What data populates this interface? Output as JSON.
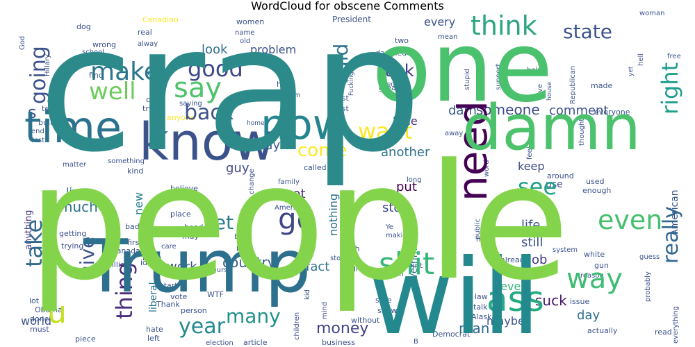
{
  "chart_data": {
    "type": "wordcloud",
    "title": "WordCloud for obscene Comments",
    "colormap": "viridis",
    "background": "#ffffff",
    "words": [
      {
        "text": "crap",
        "weight": 250,
        "color": "#2c8a8a"
      },
      {
        "text": "people",
        "weight": 230,
        "color": "#84d44b"
      },
      {
        "text": "one",
        "weight": 140,
        "color": "#4ac16d"
      },
      {
        "text": "will",
        "weight": 150,
        "color": "#23898e"
      },
      {
        "text": "Trump",
        "weight": 105,
        "color": "#2d708e"
      },
      {
        "text": "damn",
        "weight": 90,
        "color": "#4cc26c"
      },
      {
        "text": "know",
        "weight": 74,
        "color": "#3b528b"
      },
      {
        "text": "time",
        "weight": 62,
        "color": "#2c728e"
      },
      {
        "text": "now",
        "weight": 60,
        "color": "#25858e"
      },
      {
        "text": "need",
        "weight": 58,
        "color": "#440154"
      },
      {
        "text": "ass",
        "weight": 50,
        "color": "#25ab82"
      },
      {
        "text": "shit",
        "weight": 44,
        "color": "#35b779"
      },
      {
        "text": "go",
        "weight": 42,
        "color": "#3f4788"
      },
      {
        "text": "u",
        "weight": 44,
        "color": "#c5e021"
      },
      {
        "text": "way",
        "weight": 40,
        "color": "#3fbc73"
      },
      {
        "text": "even",
        "weight": 38,
        "color": "#46c06f"
      },
      {
        "text": "say",
        "weight": 40,
        "color": "#4ec36b"
      },
      {
        "text": "think",
        "weight": 38,
        "color": "#2ca580"
      },
      {
        "text": "make",
        "weight": 36,
        "color": "#2b748e"
      },
      {
        "text": "well",
        "weight": 34,
        "color": "#6ccd5a"
      },
      {
        "text": "want",
        "weight": 32,
        "color": "#fde725"
      },
      {
        "text": "thing",
        "weight": 32,
        "color": "#472d7b"
      },
      {
        "text": "right",
        "weight": 32,
        "color": "#1f9e89"
      },
      {
        "text": "back",
        "weight": 30,
        "color": "#3b528b"
      },
      {
        "text": "see",
        "weight": 32,
        "color": "#1fa088"
      },
      {
        "text": "good",
        "weight": 32,
        "color": "#3e4989"
      },
      {
        "text": "going",
        "weight": 30,
        "color": "#3b528b"
      },
      {
        "text": "take",
        "weight": 32,
        "color": "#31688e"
      },
      {
        "text": "really",
        "weight": 30,
        "color": "#31688e"
      },
      {
        "text": "year",
        "weight": 30,
        "color": "#23898e"
      },
      {
        "text": "many",
        "weight": 28,
        "color": "#20928c"
      },
      {
        "text": "give",
        "weight": 28,
        "color": "#3b528b"
      },
      {
        "text": "state",
        "weight": 28,
        "color": "#3b528b"
      },
      {
        "text": "let",
        "weight": 28,
        "color": "#287c8e"
      },
      {
        "text": "said",
        "weight": 28,
        "color": "#2c728e"
      },
      {
        "text": "come",
        "weight": 26,
        "color": "#fde725"
      },
      {
        "text": "fuck",
        "weight": 24,
        "color": "#443983"
      },
      {
        "text": "money",
        "weight": 22,
        "color": "#414487"
      },
      {
        "text": "someone",
        "weight": 20,
        "color": "#3e4989"
      },
      {
        "text": "s",
        "weight": 24,
        "color": "#3b528b"
      },
      {
        "text": "country",
        "weight": 20,
        "color": "#38598c"
      },
      {
        "text": "suck",
        "weight": 20,
        "color": "#481769"
      },
      {
        "text": "comment",
        "weight": 18,
        "color": "#3b528b"
      },
      {
        "text": "man",
        "weight": 20,
        "color": "#31688e"
      },
      {
        "text": "much",
        "weight": 20,
        "color": "#2c728e"
      },
      {
        "text": "work",
        "weight": 18,
        "color": "#3b528b"
      },
      {
        "text": "look",
        "weight": 18,
        "color": "#2d708e"
      },
      {
        "text": "problem",
        "weight": 16,
        "color": "#3b528b"
      },
      {
        "text": "pay",
        "weight": 18,
        "color": "#38598c"
      },
      {
        "text": "guy",
        "weight": 18,
        "color": "#3e4989"
      },
      {
        "text": "another",
        "weight": 18,
        "color": "#2d708e"
      },
      {
        "text": "darn",
        "weight": 18,
        "color": "#38598c"
      },
      {
        "text": "little",
        "weight": 16,
        "color": "#472d7b"
      },
      {
        "text": "put",
        "weight": 18,
        "color": "#440154"
      },
      {
        "text": "got",
        "weight": 18,
        "color": "#472d7b"
      },
      {
        "text": "stop",
        "weight": 18,
        "color": "#3e4989"
      },
      {
        "text": "life",
        "weight": 18,
        "color": "#3b528b"
      },
      {
        "text": "still",
        "weight": 18,
        "color": "#3b528b"
      },
      {
        "text": "job",
        "weight": 18,
        "color": "#443983"
      },
      {
        "text": "keep",
        "weight": 16,
        "color": "#3e4989"
      },
      {
        "text": "never",
        "weight": 16,
        "color": "#35b779"
      },
      {
        "text": "day",
        "weight": 18,
        "color": "#2d708e"
      },
      {
        "text": "maybe",
        "weight": 16,
        "color": "#3b528b"
      },
      {
        "text": "better",
        "weight": 14,
        "color": "#287c8e"
      },
      {
        "text": "fact",
        "weight": 18,
        "color": "#2c728e"
      },
      {
        "text": "live",
        "weight": 16,
        "color": "#2d708e"
      },
      {
        "text": "new",
        "weight": 16,
        "color": "#26828e"
      },
      {
        "text": "world",
        "weight": 16,
        "color": "#3b528b"
      },
      {
        "text": "nothing",
        "weight": 16,
        "color": "#2c728e"
      },
      {
        "text": "government",
        "weight": 14,
        "color": "#2d708e"
      },
      {
        "text": "liberal",
        "weight": 14,
        "color": "#2c728e"
      },
      {
        "text": "use",
        "weight": 14,
        "color": "#3b528b"
      },
      {
        "text": "American",
        "weight": 14,
        "color": "#3b528b"
      },
      {
        "text": "anything",
        "weight": 13,
        "color": "#46337f"
      },
      {
        "text": "every",
        "weight": 16,
        "color": "#3b528b"
      },
      {
        "text": "President",
        "weight": 12,
        "color": "#3b528b"
      },
      {
        "text": "women",
        "weight": 11,
        "color": "#3b528b"
      },
      {
        "text": "Canadian",
        "weight": 11,
        "color": "#fde725"
      },
      {
        "text": "dog",
        "weight": 11,
        "color": "#3b528b"
      },
      {
        "text": "real",
        "weight": 11,
        "color": "#3b528b"
      },
      {
        "text": "alway",
        "weight": 10,
        "color": "#3b528b"
      },
      {
        "text": "wrong",
        "weight": 11,
        "color": "#3b528b"
      },
      {
        "text": "school",
        "weight": 10,
        "color": "#3b528b"
      },
      {
        "text": "name",
        "weight": 10,
        "color": "#3b528b"
      },
      {
        "text": "old",
        "weight": 10,
        "color": "#3b528b"
      },
      {
        "text": "God",
        "weight": 10,
        "color": "#3b528b"
      },
      {
        "text": "Hillary",
        "weight": 10,
        "color": "#3b528b"
      },
      {
        "text": "two",
        "weight": 11,
        "color": "#3b528b"
      },
      {
        "text": "damned",
        "weight": 11,
        "color": "#3b528b"
      },
      {
        "text": "screwed",
        "weight": 10,
        "color": "#3b528b"
      },
      {
        "text": "mean",
        "weight": 10,
        "color": "#3b528b"
      },
      {
        "text": "woman",
        "weight": 10,
        "color": "#3b528b"
      },
      {
        "text": "free",
        "weight": 10,
        "color": "#3b528b"
      },
      {
        "text": "hell",
        "weight": 10,
        "color": "#3b528b"
      },
      {
        "text": "Republican",
        "weight": 10,
        "color": "#3b528b"
      },
      {
        "text": "find",
        "weight": 11,
        "color": "#3b528b"
      },
      {
        "text": "run",
        "weight": 10,
        "color": "#3b528b"
      },
      {
        "text": "hope",
        "weight": 11,
        "color": "#3b528b"
      },
      {
        "text": "seem",
        "weight": 10,
        "color": "#3b528b"
      },
      {
        "text": "Fucking",
        "weight": 9,
        "color": "#3b528b"
      },
      {
        "text": "men",
        "weight": 9,
        "color": "#3b528b"
      },
      {
        "text": "great",
        "weight": 11,
        "color": "#3b528b"
      },
      {
        "text": "stupid",
        "weight": 10,
        "color": "#3b528b"
      },
      {
        "text": "support",
        "weight": 10,
        "color": "#3b528b"
      },
      {
        "text": "help",
        "weight": 10,
        "color": "#3b528b"
      },
      {
        "text": "love",
        "weight": 10,
        "color": "#3b528b"
      },
      {
        "text": "house",
        "weight": 9,
        "color": "#3b528b"
      },
      {
        "text": "yet",
        "weight": 9,
        "color": "#3b528b"
      },
      {
        "text": "made",
        "weight": 11,
        "color": "#3b528b"
      },
      {
        "text": "call",
        "weight": 11,
        "color": "#3b528b"
      },
      {
        "text": "try",
        "weight": 11,
        "color": "#3b528b"
      },
      {
        "text": "saying",
        "weight": 10,
        "color": "#3b528b"
      },
      {
        "text": "lie",
        "weight": 9,
        "color": "#3b528b"
      },
      {
        "text": "best",
        "weight": 11,
        "color": "#3b528b"
      },
      {
        "text": "post",
        "weight": 11,
        "color": "#3b528b"
      },
      {
        "text": "tell",
        "weight": 11,
        "color": "#3b528b"
      },
      {
        "text": "bullshit",
        "weight": 11,
        "color": "#3b528b"
      },
      {
        "text": "end",
        "weight": 10,
        "color": "#3b528b"
      },
      {
        "text": "rest",
        "weight": 10,
        "color": "#3b528b"
      },
      {
        "text": "anyone",
        "weight": 11,
        "color": "#fde725"
      },
      {
        "text": "home",
        "weight": 9,
        "color": "#3b528b"
      },
      {
        "text": "away",
        "weight": 10,
        "color": "#3b528b"
      },
      {
        "text": "thought",
        "weight": 10,
        "color": "#3b528b"
      },
      {
        "text": "everyone",
        "weight": 11,
        "color": "#3b528b"
      },
      {
        "text": "matter",
        "weight": 10,
        "color": "#3b528b"
      },
      {
        "text": "something",
        "weight": 10,
        "color": "#3b528b"
      },
      {
        "text": "kind",
        "weight": 11,
        "color": "#3b528b"
      },
      {
        "text": "called",
        "weight": 11,
        "color": "#3b528b"
      },
      {
        "text": "word",
        "weight": 10,
        "color": "#3b528b"
      },
      {
        "text": "feel",
        "weight": 10,
        "color": "#3b528b"
      },
      {
        "text": "around",
        "weight": 11,
        "color": "#3b528b"
      },
      {
        "text": "used",
        "weight": 11,
        "color": "#3b528b"
      },
      {
        "text": "enough",
        "weight": 11,
        "color": "#3b528b"
      },
      {
        "text": "family",
        "weight": 10,
        "color": "#3b528b"
      },
      {
        "text": "believe",
        "weight": 11,
        "color": "#3b528b"
      },
      {
        "text": "change",
        "weight": 10,
        "color": "#3b528b"
      },
      {
        "text": "America",
        "weight": 10,
        "color": "#3b528b"
      },
      {
        "text": "long",
        "weight": 10,
        "color": "#3b528b"
      },
      {
        "text": "place",
        "weight": 11,
        "color": "#3b528b"
      },
      {
        "text": "getting",
        "weight": 11,
        "color": "#3b528b"
      },
      {
        "text": "trying",
        "weight": 11,
        "color": "#3b528b"
      },
      {
        "text": "head",
        "weight": 11,
        "color": "#3b528b"
      },
      {
        "text": "bad",
        "weight": 11,
        "color": "#3b528b"
      },
      {
        "text": "may",
        "weight": 11,
        "color": "#3b528b"
      },
      {
        "text": "first",
        "weight": 11,
        "color": "#3b528b"
      },
      {
        "text": "Canada",
        "weight": 11,
        "color": "#3b528b"
      },
      {
        "text": "big",
        "weight": 10,
        "color": "#3b528b"
      },
      {
        "text": "part",
        "weight": 10,
        "color": "#3b528b"
      },
      {
        "text": "Ye",
        "weight": 10,
        "color": "#3b528b"
      },
      {
        "text": "making",
        "weight": 10,
        "color": "#3b528b"
      },
      {
        "text": "public",
        "weight": 10,
        "color": "#3b528b"
      },
      {
        "text": "hand",
        "weight": 10,
        "color": "#3b528b"
      },
      {
        "text": "care",
        "weight": 10,
        "color": "#3b528b"
      },
      {
        "text": "bitch",
        "weight": 11,
        "color": "#3b528b"
      },
      {
        "text": "million",
        "weight": 11,
        "color": "#3b528b"
      },
      {
        "text": "idiot",
        "weight": 11,
        "color": "#3b528b"
      },
      {
        "text": "course",
        "weight": 10,
        "color": "#3b528b"
      },
      {
        "text": "Oh",
        "weight": 11,
        "color": "#3b528b"
      },
      {
        "text": "story",
        "weight": 10,
        "color": "#3b528b"
      },
      {
        "text": "bill",
        "weight": 10,
        "color": "#3b528b"
      },
      {
        "text": "point",
        "weight": 11,
        "color": "#3b528b"
      },
      {
        "text": "happen",
        "weight": 10,
        "color": "#3b528b"
      },
      {
        "text": "already",
        "weight": 11,
        "color": "#3b528b"
      },
      {
        "text": "system",
        "weight": 10,
        "color": "#3b528b"
      },
      {
        "text": "white",
        "weight": 11,
        "color": "#3b528b"
      },
      {
        "text": "guess",
        "weight": 10,
        "color": "#3b528b"
      },
      {
        "text": "gun",
        "weight": 11,
        "color": "#3b528b"
      },
      {
        "text": "reason",
        "weight": 10,
        "color": "#3b528b"
      },
      {
        "text": "probably",
        "weight": 10,
        "color": "#3b528b"
      },
      {
        "text": "issue",
        "weight": 11,
        "color": "#3b528b"
      },
      {
        "text": "start",
        "weight": 11,
        "color": "#3b528b"
      },
      {
        "text": "vote",
        "weight": 11,
        "color": "#3b528b"
      },
      {
        "text": "Thank",
        "weight": 11,
        "color": "#3b528b"
      },
      {
        "text": "person",
        "weight": 11,
        "color": "#3b528b"
      },
      {
        "text": "WTF",
        "weight": 11,
        "color": "#3b528b"
      },
      {
        "text": "lot",
        "weight": 11,
        "color": "#3b528b"
      },
      {
        "text": "Obama",
        "weight": 11,
        "color": "#3b528b"
      },
      {
        "text": "done",
        "weight": 11,
        "color": "#3b528b"
      },
      {
        "text": "must",
        "weight": 11,
        "color": "#3b528b"
      },
      {
        "text": "hate",
        "weight": 11,
        "color": "#3b528b"
      },
      {
        "text": "left",
        "weight": 11,
        "color": "#3b528b"
      },
      {
        "text": "piece",
        "weight": 11,
        "color": "#3b528b"
      },
      {
        "text": "election",
        "weight": 10,
        "color": "#3b528b"
      },
      {
        "text": "article",
        "weight": 11,
        "color": "#3b528b"
      },
      {
        "text": "children",
        "weight": 10,
        "color": "#3b528b"
      },
      {
        "text": "kid",
        "weight": 10,
        "color": "#3b528b"
      },
      {
        "text": "mind",
        "weight": 10,
        "color": "#3b528b"
      },
      {
        "text": "sure",
        "weight": 11,
        "color": "#3b528b"
      },
      {
        "text": "show",
        "weight": 11,
        "color": "#3b528b"
      },
      {
        "text": "without",
        "weight": 11,
        "color": "#3b528b"
      },
      {
        "text": "business",
        "weight": 11,
        "color": "#3b528b"
      },
      {
        "text": "B",
        "weight": 10,
        "color": "#3b528b"
      },
      {
        "text": "law",
        "weight": 11,
        "color": "#3b528b"
      },
      {
        "text": "talk",
        "weight": 11,
        "color": "#3b528b"
      },
      {
        "text": "Alaska",
        "weight": 11,
        "color": "#3b528b"
      },
      {
        "text": "Democrat",
        "weight": 11,
        "color": "#3b528b"
      },
      {
        "text": "actually",
        "weight": 11,
        "color": "#3b528b"
      },
      {
        "text": "read",
        "weight": 11,
        "color": "#3b528b"
      },
      {
        "text": "everything",
        "weight": 10,
        "color": "#3b528b"
      }
    ]
  }
}
